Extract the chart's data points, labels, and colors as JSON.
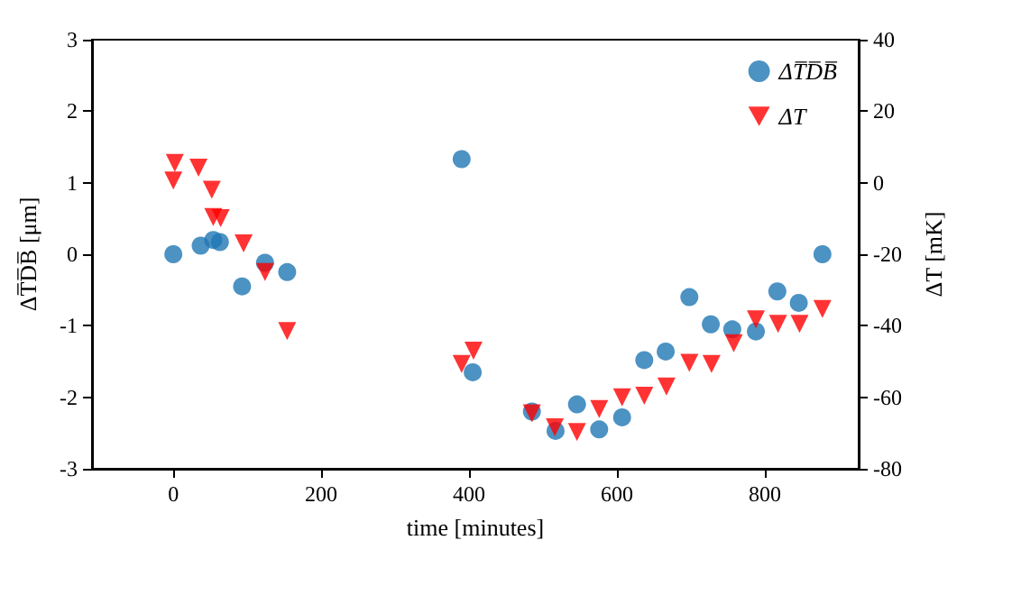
{
  "chart_data": {
    "type": "scatter",
    "xlabel": "time [minutes]",
    "ylabel": "ΔT̅D̅B̅ [μm]",
    "y2label": "ΔT [mK]",
    "xlim": [
      -110,
      927
    ],
    "xticks": [
      0,
      200,
      400,
      600,
      800
    ],
    "ylim": [
      -3,
      3
    ],
    "yticks": [
      -3,
      -2,
      -1,
      0,
      1,
      2,
      3
    ],
    "y2lim": [
      -80,
      40
    ],
    "y2ticks": [
      -80,
      -60,
      -40,
      -20,
      0,
      20,
      40
    ],
    "grid": false,
    "legend": "top right",
    "series": [
      {
        "name": "ΔT̅D̅B̅",
        "color": "#1f77b4",
        "marker": "circle",
        "x": [
          0,
          37,
          54,
          63,
          93,
          124,
          154,
          390,
          405,
          485,
          517,
          546,
          576,
          607,
          637,
          666,
          698,
          727,
          756,
          788,
          817,
          846,
          878
        ],
        "values": [
          0,
          0.12,
          0.2,
          0.17,
          -0.45,
          -0.12,
          -0.25,
          1.33,
          -1.65,
          -2.2,
          -2.47,
          -2.1,
          -2.45,
          -2.28,
          -1.48,
          -1.36,
          -0.6,
          -0.98,
          -1.05,
          -1.08,
          -0.52,
          -0.68,
          0
        ]
      },
      {
        "name": "ΔT",
        "color": "#ff0000",
        "marker": "triangle-down",
        "axis": "y2",
        "x": [
          0,
          2,
          34,
          52,
          54,
          64,
          95,
          124,
          154,
          390,
          406,
          485,
          516,
          546,
          576,
          607,
          637,
          667,
          698,
          728,
          758,
          788,
          818,
          847,
          878
        ],
        "values": [
          0.6,
          5.5,
          4.2,
          -2,
          -9.6,
          -9.9,
          -17,
          -25,
          -41.5,
          -50.7,
          -47,
          -64.5,
          -68.4,
          -69.7,
          -63.3,
          -60,
          -59.6,
          -57,
          -50.4,
          -50.7,
          -44.9,
          -38.2,
          -39.5,
          -39.5,
          -35.3
        ]
      }
    ]
  }
}
